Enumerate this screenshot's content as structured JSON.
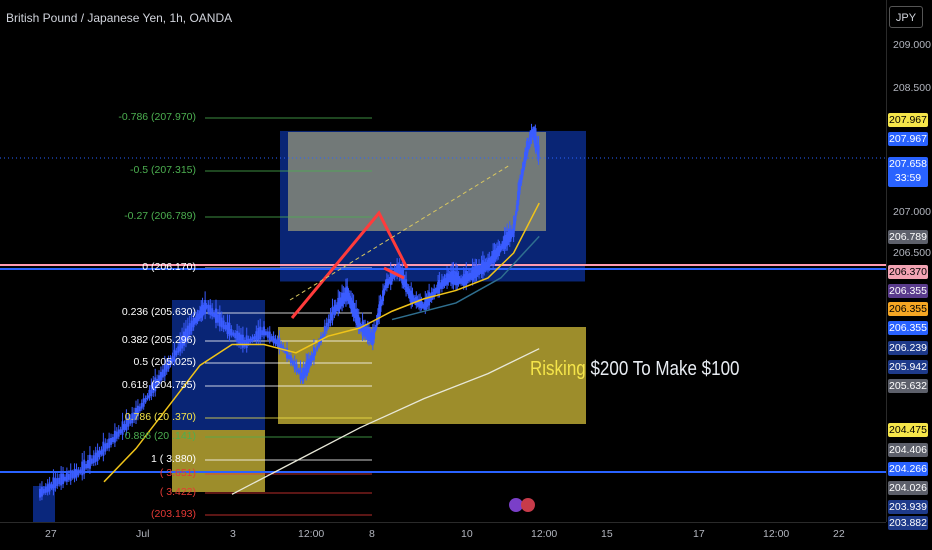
{
  "header": {
    "title": "British Pound / Japanese Yen, 1h, OANDA",
    "currency_button": "JPY"
  },
  "colors": {
    "background": "#000000",
    "candle": "#3a5cff",
    "ema_fast": "#f0c419",
    "ema_mid": "#2f6f8f",
    "sma_slow": "#e8e8d8",
    "fib_green": "#4caf50",
    "fib_white": "#ffffff",
    "fib_red": "#e53935",
    "position_profit": "#0b2b8a",
    "position_risk": "#b8a632",
    "drawing_red": "#ff3b3b",
    "line_pink": "#ff9bb0",
    "line_blue": "#2962ff"
  },
  "banner": {
    "highlight": "Risking",
    "rest": " $200 To Make $100"
  },
  "chart_data": {
    "type": "line",
    "symbol": "GBPJPY",
    "timeframe": "1h",
    "y_axis": {
      "ylim": [
        203.8,
        209.25
      ],
      "ticks": [
        "209.000",
        "208.500",
        "207.000",
        "206.500"
      ]
    },
    "x_axis": {
      "ticks": [
        "27",
        "Jul",
        "3",
        "12:00",
        "8",
        "10",
        "12:00",
        "15",
        "17",
        "12:00",
        "22"
      ]
    },
    "price_labels": [
      {
        "text": "207.967",
        "kind": "yellow"
      },
      {
        "text": "207.967",
        "kind": "blue"
      },
      {
        "text": "207.658",
        "kind": "blue",
        "sub": "33:59"
      },
      {
        "text": "206.789",
        "kind": "gray"
      },
      {
        "text": "206.370",
        "kind": "pink"
      },
      {
        "text": "206.355",
        "kind": "purple"
      },
      {
        "text": "206.355",
        "kind": "orange"
      },
      {
        "text": "206.355",
        "kind": "blue"
      },
      {
        "text": "206.239",
        "kind": "darkblue"
      },
      {
        "text": "205.942",
        "kind": "darkblue"
      },
      {
        "text": "205.632",
        "kind": "gray"
      },
      {
        "text": "204.475",
        "kind": "yellow"
      },
      {
        "text": "204.406",
        "kind": "gray"
      },
      {
        "text": "204.266",
        "kind": "blue"
      },
      {
        "text": "204.026",
        "kind": "gray"
      },
      {
        "text": "203.939",
        "kind": "darkblue"
      },
      {
        "text": "203.882",
        "kind": "darkblue"
      }
    ],
    "fib_levels": [
      {
        "ratio": "-0.786",
        "price": 207.97,
        "label": "-0.786 (207.970)",
        "color": "green"
      },
      {
        "ratio": "-0.5",
        "price": 207.315,
        "label": "-0.5 (207.315)",
        "color": "green"
      },
      {
        "ratio": "-0.27",
        "price": 206.789,
        "label": "-0.27 (206.789)",
        "color": "green"
      },
      {
        "ratio": "0",
        "price": 206.17,
        "label": "0 (206.170)",
        "color": "white"
      },
      {
        "ratio": "0.236",
        "price": 205.63,
        "label": "0.236 (205.630)",
        "color": "white"
      },
      {
        "ratio": "0.382",
        "price": 205.296,
        "label": "0.382 (205.296)",
        "color": "white"
      },
      {
        "ratio": "0.5",
        "price": 205.025,
        "label": "0.5 (205.025)",
        "color": "white"
      },
      {
        "ratio": "0.618",
        "price": 204.755,
        "label": "0.618 (204.755)",
        "color": "white"
      },
      {
        "ratio": "0.786",
        "price": 204.37,
        "label": "0.786 (20 .370)",
        "color": "yellow"
      },
      {
        "ratio": "0.886",
        "price": 204.141,
        "label": "0.886 (20 .141)",
        "color": "green"
      },
      {
        "ratio": "1",
        "price": 203.88,
        "label": "1 ( 3.880)",
        "color": "white"
      },
      {
        "ratio": "",
        "price": 203.651,
        "label": "( 3.651)",
        "color": "red"
      },
      {
        "ratio": "",
        "price": 203.422,
        "label": "( 3.422)",
        "color": "red"
      },
      {
        "ratio": "",
        "price": 203.193,
        "label": "(203.193)",
        "color": "red"
      }
    ],
    "price_path": [
      [
        0.0,
        203.6
      ],
      [
        0.03,
        203.75
      ],
      [
        0.06,
        203.85
      ],
      [
        0.09,
        204.05
      ],
      [
        0.12,
        204.3
      ],
      [
        0.15,
        204.55
      ],
      [
        0.18,
        204.9
      ],
      [
        0.21,
        205.25
      ],
      [
        0.24,
        205.65
      ],
      [
        0.26,
        205.85
      ],
      [
        0.29,
        205.6
      ],
      [
        0.32,
        205.4
      ],
      [
        0.35,
        205.55
      ],
      [
        0.38,
        205.35
      ],
      [
        0.41,
        205.0
      ],
      [
        0.43,
        205.3
      ],
      [
        0.46,
        205.8
      ],
      [
        0.48,
        206.0
      ],
      [
        0.5,
        205.6
      ],
      [
        0.52,
        205.45
      ],
      [
        0.54,
        206.1
      ],
      [
        0.56,
        206.3
      ],
      [
        0.58,
        205.95
      ],
      [
        0.6,
        205.85
      ],
      [
        0.62,
        206.05
      ],
      [
        0.64,
        206.2
      ],
      [
        0.66,
        206.15
      ],
      [
        0.68,
        206.25
      ],
      [
        0.7,
        206.35
      ],
      [
        0.72,
        206.55
      ],
      [
        0.74,
        206.75
      ],
      [
        0.75,
        207.3
      ],
      [
        0.76,
        207.7
      ],
      [
        0.77,
        207.95
      ],
      [
        0.78,
        207.66
      ]
    ],
    "ema_fast_path": [
      [
        0.1,
        203.75
      ],
      [
        0.15,
        204.15
      ],
      [
        0.2,
        204.65
      ],
      [
        0.25,
        205.15
      ],
      [
        0.3,
        205.4
      ],
      [
        0.35,
        205.4
      ],
      [
        0.4,
        205.3
      ],
      [
        0.45,
        205.5
      ],
      [
        0.5,
        205.6
      ],
      [
        0.55,
        205.8
      ],
      [
        0.6,
        205.95
      ],
      [
        0.65,
        206.05
      ],
      [
        0.7,
        206.2
      ],
      [
        0.74,
        206.5
      ],
      [
        0.78,
        207.1
      ]
    ],
    "sma_slow_path": [
      [
        0.3,
        203.6
      ],
      [
        0.4,
        204.0
      ],
      [
        0.5,
        204.4
      ],
      [
        0.6,
        204.75
      ],
      [
        0.7,
        205.05
      ],
      [
        0.78,
        205.35
      ]
    ],
    "positions": [
      {
        "name": "short-setup",
        "x0": 0.32,
        "x1": 0.66,
        "entry": 206.37,
        "stop": 204.475,
        "target": 207.967
      },
      {
        "name": "zone-left",
        "x0": 0.2,
        "x1": 0.3,
        "entry": 205.632,
        "stop": 204.026,
        "target": 205.632
      }
    ],
    "horizontal_lines": [
      {
        "price": 206.37,
        "color": "pink"
      },
      {
        "price": 204.266,
        "color": "blue"
      },
      {
        "price": 207.658,
        "color": "dotted-blue"
      }
    ]
  }
}
